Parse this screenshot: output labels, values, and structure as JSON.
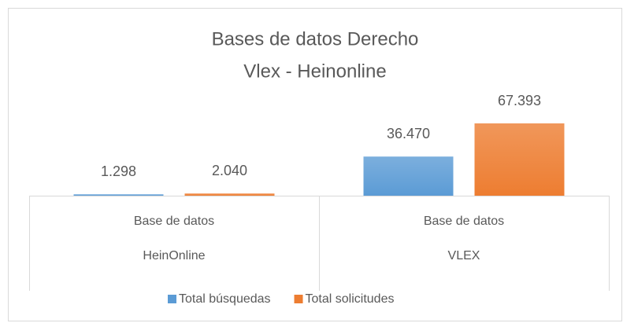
{
  "chart_data": {
    "type": "bar",
    "title": [
      "Bases de datos Derecho",
      "Vlex - Heinonline"
    ],
    "categories": [
      "HeinOnline",
      "VLEX"
    ],
    "category_groups": [
      "Base de datos",
      "Base de datos"
    ],
    "series": [
      {
        "name": "Total búsquedas",
        "color": "#5b9bd5",
        "values": [
          1298,
          36470
        ],
        "value_labels": [
          "1.298",
          "36.470"
        ]
      },
      {
        "name": "Total solicitudes",
        "color": "#ed7d31",
        "values": [
          2040,
          67393
        ],
        "value_labels": [
          "2.040",
          "67.393"
        ]
      }
    ],
    "legend": "bottom"
  }
}
